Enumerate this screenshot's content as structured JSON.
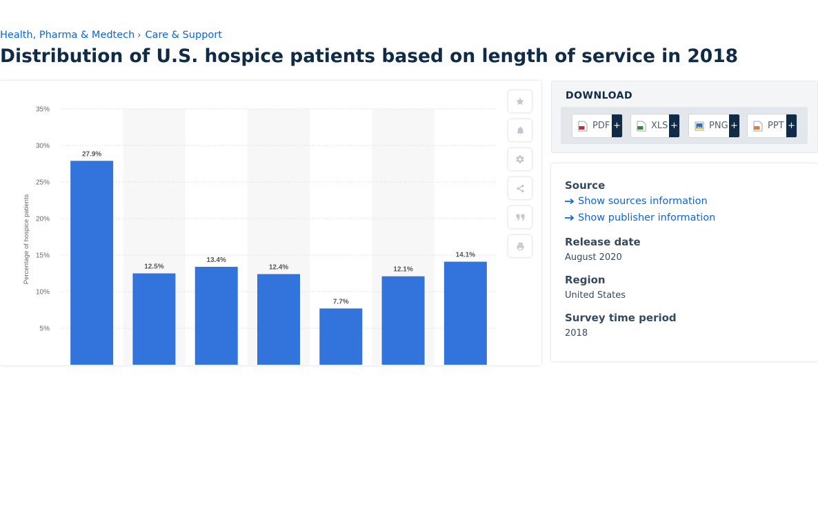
{
  "breadcrumb": {
    "items": [
      "Health, Pharma & Medtech",
      "Care & Support"
    ],
    "separator": "›"
  },
  "page": {
    "title": "Distribution of U.S. hospice patients based on length of service in 2018"
  },
  "chart_data": {
    "type": "bar",
    "title": "",
    "xlabel": "",
    "ylabel": "Percentage of hospice patients",
    "categories": [
      "",
      "",
      "",
      "",
      "",
      "",
      ""
    ],
    "values": [
      27.9,
      12.5,
      13.4,
      12.4,
      7.7,
      12.1,
      14.1
    ],
    "value_labels": [
      "27.9%",
      "12.5%",
      "13.4%",
      "12.4%",
      "7.7%",
      "12.1%",
      "14.1%"
    ],
    "ylim": [
      0,
      35
    ],
    "yticks": [
      5,
      10,
      15,
      20,
      25,
      30,
      35
    ],
    "ytick_labels": [
      "5%",
      "10%",
      "15%",
      "20%",
      "25%",
      "30%",
      "35%"
    ],
    "grid": true,
    "bar_color": "#3273dc",
    "alt_band_color": "#f7f7f7"
  },
  "toolbar": {
    "items": [
      {
        "name": "favorite-star-icon",
        "icon": "star"
      },
      {
        "name": "notification-bell-icon",
        "icon": "bell"
      },
      {
        "name": "settings-gear-icon",
        "icon": "gear"
      },
      {
        "name": "share-icon",
        "icon": "share"
      },
      {
        "name": "citation-quote-icon",
        "icon": "quote"
      },
      {
        "name": "print-icon",
        "icon": "print"
      }
    ]
  },
  "download": {
    "title": "DOWNLOAD",
    "buttons": [
      {
        "label": "PDF",
        "plus": "+",
        "icon": "pdf-file-icon",
        "color": "#d9252a"
      },
      {
        "label": "XLS",
        "plus": "+",
        "icon": "xls-file-icon",
        "color": "#2e8b3c"
      },
      {
        "label": "PNG",
        "plus": "+",
        "icon": "png-file-icon",
        "color": "#2a6fc4"
      },
      {
        "label": "PPT",
        "plus": "+",
        "icon": "ppt-file-icon",
        "color": "#e8792b"
      }
    ]
  },
  "info": {
    "source_label": "Source",
    "show_sources": "Show sources information",
    "show_publisher": "Show publisher information",
    "release_date_label": "Release date",
    "release_date": "August 2020",
    "region_label": "Region",
    "region": "United States",
    "survey_period_label": "Survey time period",
    "survey_period": "2018"
  },
  "colors": {
    "accent": "#0666e5",
    "title": "#0f2b46",
    "bar": "#3273dc"
  }
}
